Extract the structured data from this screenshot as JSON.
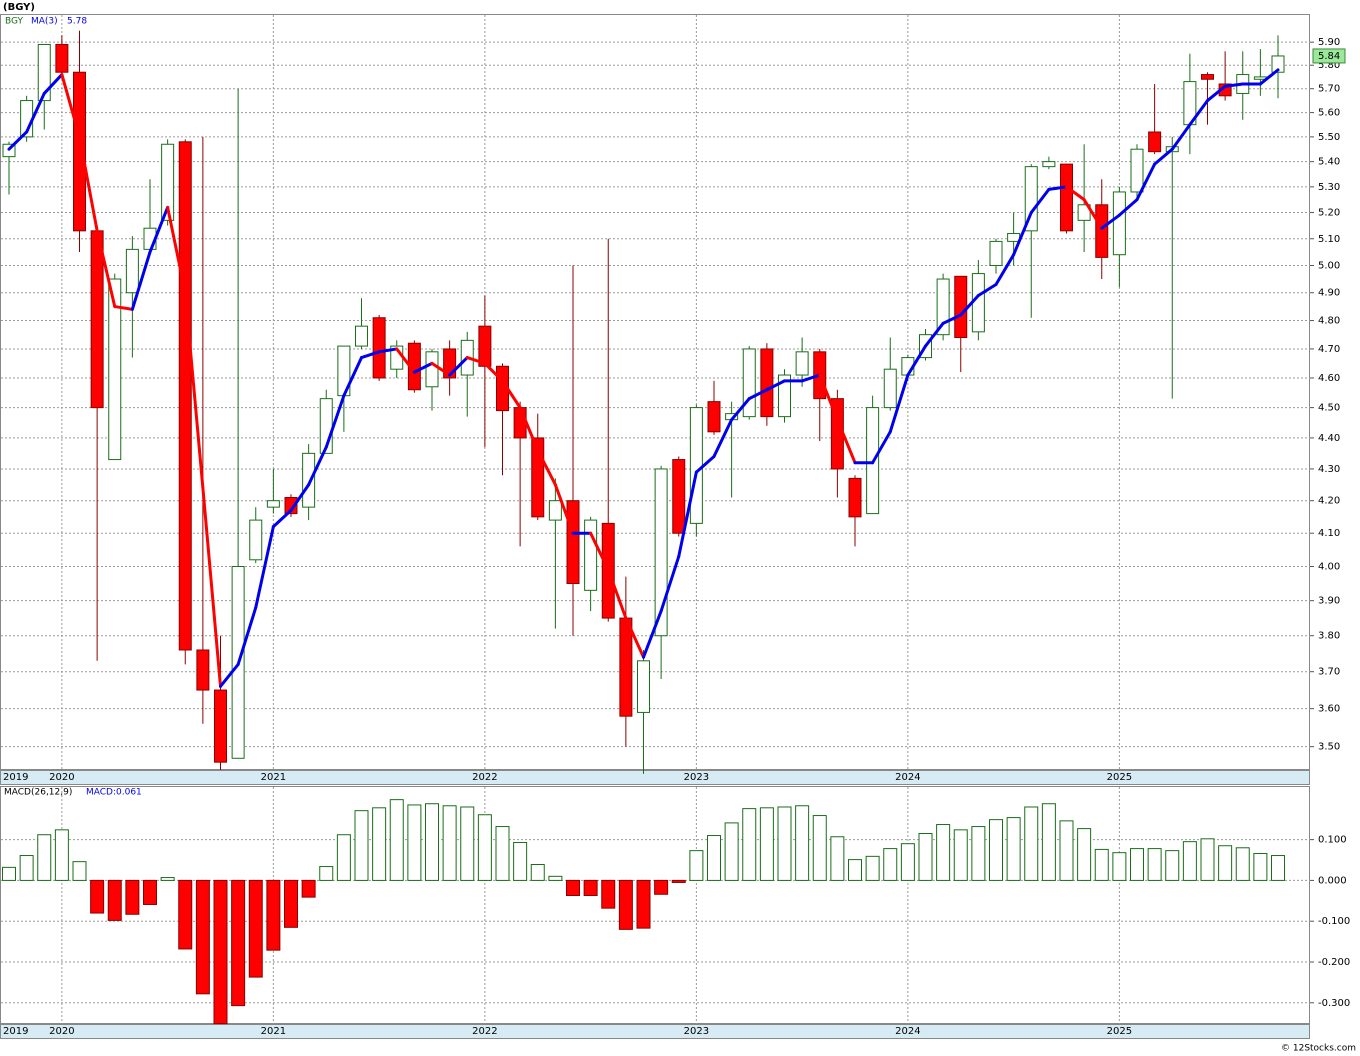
{
  "chart_data": [
    {
      "type": "candlestick",
      "title": "(BGY)",
      "name": "BGY",
      "categories": [
        "2019",
        null,
        null,
        "2020",
        null,
        null,
        null,
        null,
        null,
        null,
        null,
        null,
        null,
        null,
        null,
        "2021",
        null,
        null,
        null,
        null,
        null,
        null,
        null,
        null,
        null,
        null,
        null,
        "2022",
        null,
        null,
        null,
        null,
        null,
        null,
        null,
        null,
        null,
        null,
        null,
        "2023",
        null,
        null,
        null,
        null,
        null,
        null,
        null,
        null,
        null,
        null,
        null,
        "2024",
        null,
        null,
        null,
        null,
        null,
        null,
        null,
        null,
        null,
        null,
        null,
        "2025",
        null,
        null,
        null,
        null,
        null,
        null,
        null,
        null,
        null
      ],
      "open": [
        5.42,
        5.5,
        5.65,
        5.89,
        5.77,
        5.13,
        4.33,
        4.9,
        5.06,
        5.17,
        5.48,
        3.76,
        3.65,
        3.47,
        4.02,
        4.18,
        4.21,
        4.18,
        4.35,
        4.54,
        4.71,
        4.81,
        4.63,
        4.72,
        4.57,
        4.7,
        4.61,
        4.78,
        4.64,
        4.5,
        4.4,
        4.14,
        4.2,
        3.93,
        4.13,
        3.85,
        3.59,
        3.8,
        4.33,
        4.13,
        4.52,
        4.46,
        4.47,
        4.7,
        4.47,
        4.61,
        4.69,
        4.53,
        4.27,
        4.16,
        4.5,
        4.61,
        4.67,
        4.75,
        4.96,
        4.76,
        5.0,
        5.09,
        5.13,
        5.38,
        5.39,
        5.17,
        5.23,
        5.04,
        5.28,
        5.52,
        5.44,
        5.55,
        5.76,
        5.72,
        5.68,
        5.74,
        5.77
      ],
      "high": [
        5.48,
        5.67,
        5.89,
        5.93,
        5.95,
        5.15,
        4.97,
        5.11,
        5.33,
        5.49,
        5.49,
        5.5,
        3.8,
        5.7,
        4.18,
        4.3,
        4.22,
        4.38,
        4.56,
        4.71,
        4.88,
        4.82,
        4.73,
        4.73,
        4.7,
        4.73,
        4.76,
        4.89,
        4.65,
        4.52,
        4.48,
        4.27,
        5.0,
        4.15,
        5.1,
        3.97,
        3.76,
        4.31,
        4.34,
        4.51,
        4.59,
        4.52,
        4.71,
        4.72,
        4.63,
        4.74,
        4.7,
        4.56,
        4.28,
        4.54,
        4.74,
        4.68,
        4.77,
        4.97,
        4.96,
        5.02,
        5.1,
        5.2,
        5.39,
        5.42,
        5.39,
        5.47,
        5.33,
        5.3,
        5.47,
        5.72,
        5.5,
        5.85,
        5.77,
        5.86,
        5.86,
        5.87,
        5.93
      ],
      "low": [
        5.27,
        5.48,
        5.53,
        5.74,
        5.05,
        3.73,
        4.33,
        4.67,
        5.05,
        5.15,
        3.72,
        3.56,
        3.44,
        3.47,
        4.01,
        4.16,
        4.15,
        4.14,
        4.35,
        4.42,
        4.7,
        4.59,
        4.6,
        4.55,
        4.49,
        4.54,
        4.47,
        4.37,
        4.28,
        4.06,
        4.14,
        3.82,
        3.8,
        3.87,
        3.84,
        3.5,
        3.43,
        3.68,
        4.09,
        4.09,
        4.41,
        4.21,
        4.46,
        4.44,
        4.45,
        4.57,
        4.39,
        4.21,
        4.06,
        4.16,
        4.49,
        4.59,
        4.66,
        4.73,
        4.62,
        4.73,
        4.97,
        5.0,
        4.81,
        5.37,
        5.12,
        5.05,
        4.95,
        4.92,
        5.26,
        5.43,
        4.53,
        5.43,
        5.55,
        5.65,
        5.57,
        5.67,
        5.66
      ],
      "close": [
        5.47,
        5.65,
        5.89,
        5.77,
        5.13,
        4.5,
        4.95,
        5.06,
        5.14,
        5.47,
        3.76,
        3.65,
        3.46,
        4.0,
        4.14,
        4.2,
        4.16,
        4.35,
        4.53,
        4.71,
        4.78,
        4.6,
        4.71,
        4.56,
        4.69,
        4.6,
        4.73,
        4.64,
        4.49,
        4.4,
        4.15,
        4.2,
        3.95,
        4.14,
        3.85,
        3.58,
        3.73,
        4.3,
        4.1,
        4.5,
        4.42,
        4.48,
        4.7,
        4.47,
        4.61,
        4.69,
        4.53,
        4.3,
        4.15,
        4.5,
        4.63,
        4.67,
        4.75,
        4.95,
        4.74,
        4.97,
        5.09,
        5.12,
        5.38,
        5.4,
        5.13,
        5.23,
        5.03,
        5.28,
        5.45,
        5.44,
        5.46,
        5.73,
        5.74,
        5.67,
        5.76,
        5.75,
        5.84
      ],
      "up_color": "#1a6e1a",
      "down_color": "#ff0000",
      "ma": {
        "name": "MA(3)",
        "up_color": "#0000ee",
        "down_color": "#ff0000",
        "values": [
          5.45,
          5.52,
          5.68,
          5.76,
          5.5,
          5.13,
          4.85,
          4.84,
          5.05,
          5.22,
          4.9,
          4.24,
          3.66,
          3.72,
          3.88,
          4.12,
          4.17,
          4.25,
          4.37,
          4.54,
          4.67,
          4.69,
          4.7,
          4.62,
          4.65,
          4.61,
          4.67,
          4.65,
          4.59,
          4.5,
          4.36,
          4.25,
          4.1,
          4.1,
          3.99,
          3.85,
          3.74,
          3.87,
          4.03,
          4.29,
          4.34,
          4.46,
          4.53,
          4.56,
          4.59,
          4.59,
          4.61,
          4.46,
          4.32,
          4.32,
          4.42,
          4.61,
          4.71,
          4.79,
          4.82,
          4.89,
          4.93,
          5.04,
          5.2,
          5.29,
          5.3,
          5.25,
          5.14,
          5.19,
          5.25,
          5.39,
          5.45,
          5.55,
          5.65,
          5.71,
          5.72,
          5.72,
          5.78
        ]
      },
      "log": true,
      "ylim": [
        3.44,
        6.02
      ],
      "yticks": [
        {
          "value": 3.5,
          "label": "3.50"
        },
        {
          "value": 3.6,
          "label": "3.60"
        },
        {
          "value": 3.7,
          "label": "3.70"
        },
        {
          "value": 3.8,
          "label": "3.80"
        },
        {
          "value": 3.9,
          "label": "3.90"
        },
        {
          "value": 4.0,
          "label": "4.00"
        },
        {
          "value": 4.1,
          "label": "4.10"
        },
        {
          "value": 4.2,
          "label": "4.20"
        },
        {
          "value": 4.3,
          "label": "4.30"
        },
        {
          "value": 4.4,
          "label": "4.40"
        },
        {
          "value": 4.5,
          "label": "4.50"
        },
        {
          "value": 4.6,
          "label": "4.60"
        },
        {
          "value": 4.7,
          "label": "4.70"
        },
        {
          "value": 4.8,
          "label": "4.80"
        },
        {
          "value": 4.9,
          "label": "4.90"
        },
        {
          "value": 5.0,
          "label": "5.00"
        },
        {
          "value": 5.1,
          "label": "5.10"
        },
        {
          "value": 5.2,
          "label": "5.20"
        },
        {
          "value": 5.3,
          "label": "5.30"
        },
        {
          "value": 5.4,
          "label": "5.40"
        },
        {
          "value": 5.5,
          "label": "5.50"
        },
        {
          "value": 5.6,
          "label": "5.60"
        },
        {
          "value": 5.7,
          "label": "5.70"
        },
        {
          "value": 5.8,
          "label": "5.80"
        },
        {
          "value": 5.9,
          "label": "5.90"
        }
      ],
      "grid": true
    },
    {
      "type": "bar",
      "title": "MACD(26,12,9)",
      "value_label": "MACD:0.061",
      "categories": [
        "2019",
        null,
        null,
        "2020",
        null,
        null,
        null,
        null,
        null,
        null,
        null,
        null,
        null,
        null,
        null,
        "2021",
        null,
        null,
        null,
        null,
        null,
        null,
        null,
        null,
        null,
        null,
        null,
        "2022",
        null,
        null,
        null,
        null,
        null,
        null,
        null,
        null,
        null,
        null,
        null,
        "2023",
        null,
        null,
        null,
        null,
        null,
        null,
        null,
        null,
        null,
        null,
        null,
        "2024",
        null,
        null,
        null,
        null,
        null,
        null,
        null,
        null,
        null,
        null,
        null,
        "2025",
        null,
        null,
        null,
        null,
        null,
        null,
        null,
        null,
        null
      ],
      "values": [
        0.032,
        0.061,
        0.112,
        0.124,
        0.046,
        -0.08,
        -0.098,
        -0.083,
        -0.059,
        0.007,
        -0.168,
        -0.278,
        -0.351,
        -0.307,
        -0.237,
        -0.171,
        -0.115,
        -0.041,
        0.034,
        0.112,
        0.171,
        0.178,
        0.198,
        0.185,
        0.188,
        0.183,
        0.18,
        0.161,
        0.132,
        0.093,
        0.039,
        0.01,
        -0.037,
        -0.037,
        -0.068,
        -0.12,
        -0.117,
        -0.034,
        -0.005,
        0.073,
        0.11,
        0.141,
        0.176,
        0.178,
        0.18,
        0.183,
        0.159,
        0.107,
        0.051,
        0.059,
        0.078,
        0.09,
        0.115,
        0.137,
        0.124,
        0.132,
        0.149,
        0.154,
        0.18,
        0.188,
        0.146,
        0.127,
        0.076,
        0.068,
        0.078,
        0.078,
        0.073,
        0.095,
        0.102,
        0.085,
        0.08,
        0.066,
        0.061
      ],
      "up_color": "#1a6e1a",
      "down_color": "#ff0000",
      "ylim": [
        -0.352,
        0.229
      ],
      "yticks": [
        {
          "value": -0.3,
          "label": "-0.300"
        },
        {
          "value": -0.2,
          "label": "-0.200"
        },
        {
          "value": -0.1,
          "label": "-0.100"
        },
        {
          "value": 0,
          "label": "0.000"
        },
        {
          "value": 0.1,
          "label": "0.100"
        }
      ],
      "grid": true
    }
  ],
  "footer": "© 12Stocks.com"
}
